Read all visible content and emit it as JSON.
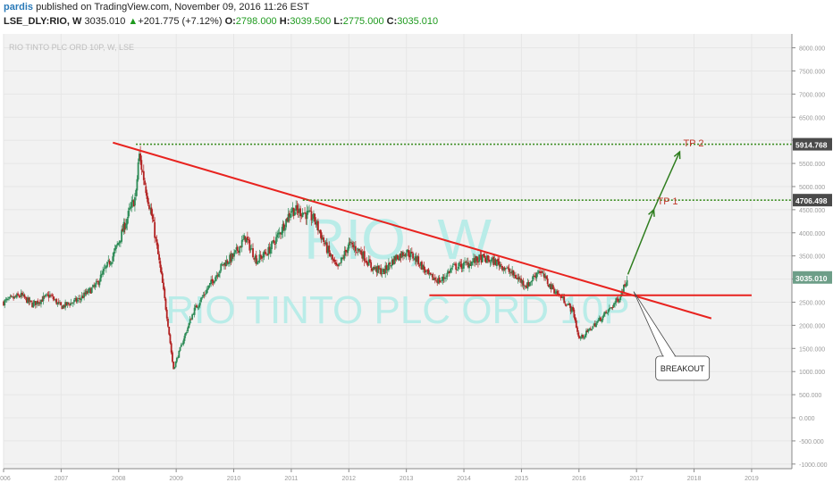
{
  "header": {
    "user": "pardis",
    "published": " published on TradingView.com, November 09, 2016 11:26 EST",
    "symbol": "LSE_DLY:RIO, W",
    "last": "3035.010",
    "change_arrow": "▲",
    "change": "+201.775 (+7.12%)",
    "o_label": "O:",
    "o_val": "2798.000",
    "h_label": "H:",
    "h_val": "3039.500",
    "l_label": "L:",
    "l_val": "2775.000",
    "c_label": "C:",
    "c_val": "3035.010"
  },
  "colors": {
    "background": "#ffffff",
    "plot_bg": "#f2f2f2",
    "bull": "#2e8b57",
    "bear": "#b22222",
    "trendline": "#e8231f",
    "target_line": "#3a8c1f",
    "annotation": "#c0392b",
    "watermark": "#b9ece8",
    "price_tag": "#4a4a4a"
  },
  "chart_data": {
    "type": "candlestick",
    "title": "RIO TINTO PLC ORD 10P, W, LSE",
    "watermark_symbol": "RIO, W",
    "watermark_name": "RIO TINTO PLC ORD 10P",
    "y_ticks": [
      "8000.000",
      "7500.000",
      "7000.000",
      "6500.000",
      "6000.000",
      "5500.000",
      "5000.000",
      "4500.000",
      "4000.000",
      "3500.000",
      "3000.000",
      "2500.000",
      "2000.000",
      "1500.000",
      "1000.000",
      "500.000",
      "0.000",
      "-500.000",
      "-1000.000"
    ],
    "y_tick_values": [
      8000,
      7500,
      7000,
      6500,
      6000,
      5500,
      5000,
      4500,
      4000,
      3500,
      3000,
      2500,
      2000,
      1500,
      1000,
      500,
      0,
      -500,
      -1000
    ],
    "ylim": [
      -1100,
      8300
    ],
    "x_ticks": [
      "2006",
      "2007",
      "2008",
      "2009",
      "2010",
      "2011",
      "2012",
      "2013",
      "2014",
      "2015",
      "2016",
      "2017",
      "2018",
      "2019"
    ],
    "x_tick_values": [
      2006,
      2007,
      2008,
      2009,
      2010,
      2011,
      2012,
      2013,
      2014,
      2015,
      2016,
      2017,
      2018,
      2019
    ],
    "xlim": [
      2006.0,
      2019.7
    ],
    "price_path": [
      [
        2006.0,
        2500
      ],
      [
        2006.3,
        2650
      ],
      [
        2006.5,
        2450
      ],
      [
        2006.8,
        2650
      ],
      [
        2007.0,
        2400
      ],
      [
        2007.3,
        2550
      ],
      [
        2007.6,
        2850
      ],
      [
        2007.9,
        3500
      ],
      [
        2008.0,
        3800
      ],
      [
        2008.2,
        4500
      ],
      [
        2008.3,
        4800
      ],
      [
        2008.35,
        5700
      ],
      [
        2008.45,
        5100
      ],
      [
        2008.6,
        4200
      ],
      [
        2008.75,
        3000
      ],
      [
        2008.85,
        2100
      ],
      [
        2008.95,
        1050
      ],
      [
        2009.1,
        1600
      ],
      [
        2009.3,
        2300
      ],
      [
        2009.5,
        2700
      ],
      [
        2009.8,
        3300
      ],
      [
        2010.0,
        3500
      ],
      [
        2010.2,
        3900
      ],
      [
        2010.4,
        3400
      ],
      [
        2010.6,
        3600
      ],
      [
        2010.8,
        4000
      ],
      [
        2011.0,
        4500
      ],
      [
        2011.2,
        4450
      ],
      [
        2011.4,
        4300
      ],
      [
        2011.6,
        3700
      ],
      [
        2011.8,
        3200
      ],
      [
        2012.0,
        3750
      ],
      [
        2012.2,
        3600
      ],
      [
        2012.4,
        3250
      ],
      [
        2012.6,
        3150
      ],
      [
        2012.8,
        3450
      ],
      [
        2013.0,
        3600
      ],
      [
        2013.2,
        3400
      ],
      [
        2013.4,
        3050
      ],
      [
        2013.6,
        2950
      ],
      [
        2013.8,
        3250
      ],
      [
        2014.0,
        3300
      ],
      [
        2014.3,
        3450
      ],
      [
        2014.6,
        3350
      ],
      [
        2014.9,
        3050
      ],
      [
        2015.1,
        2850
      ],
      [
        2015.3,
        3200
      ],
      [
        2015.5,
        2850
      ],
      [
        2015.7,
        2600
      ],
      [
        2015.9,
        2300
      ],
      [
        2016.0,
        1700
      ],
      [
        2016.1,
        1800
      ],
      [
        2016.3,
        2050
      ],
      [
        2016.5,
        2300
      ],
      [
        2016.7,
        2600
      ],
      [
        2016.85,
        3035
      ]
    ],
    "trendline": {
      "x": [
        2007.9,
        2018.3
      ],
      "y": [
        5950,
        2150
      ]
    },
    "support_line": {
      "x": [
        2013.4,
        2019.0
      ],
      "y": [
        2650,
        2650
      ],
      "price": 2650
    },
    "target_lines": [
      {
        "label": "TP 2",
        "price": 5914.768,
        "price_label": "5914.768",
        "x_start": 2008.3,
        "x_end": 2019.7
      },
      {
        "label": "TP 1",
        "price": 4706.498,
        "price_label": "4706.498",
        "x_start": 2011.2,
        "x_end": 2019.7
      }
    ],
    "arrows": [
      {
        "from": [
          2016.85,
          3100
        ],
        "to": [
          2017.3,
          4500
        ]
      },
      {
        "from": [
          2017.3,
          4500
        ],
        "to": [
          2017.75,
          5750
        ]
      }
    ],
    "current_price": {
      "value": 3035.01,
      "label": "3035.010"
    },
    "callout": {
      "text": "BREAKOUT",
      "anchor": [
        2016.95,
        2730
      ],
      "box_center": [
        2017.8,
        1100
      ]
    }
  }
}
